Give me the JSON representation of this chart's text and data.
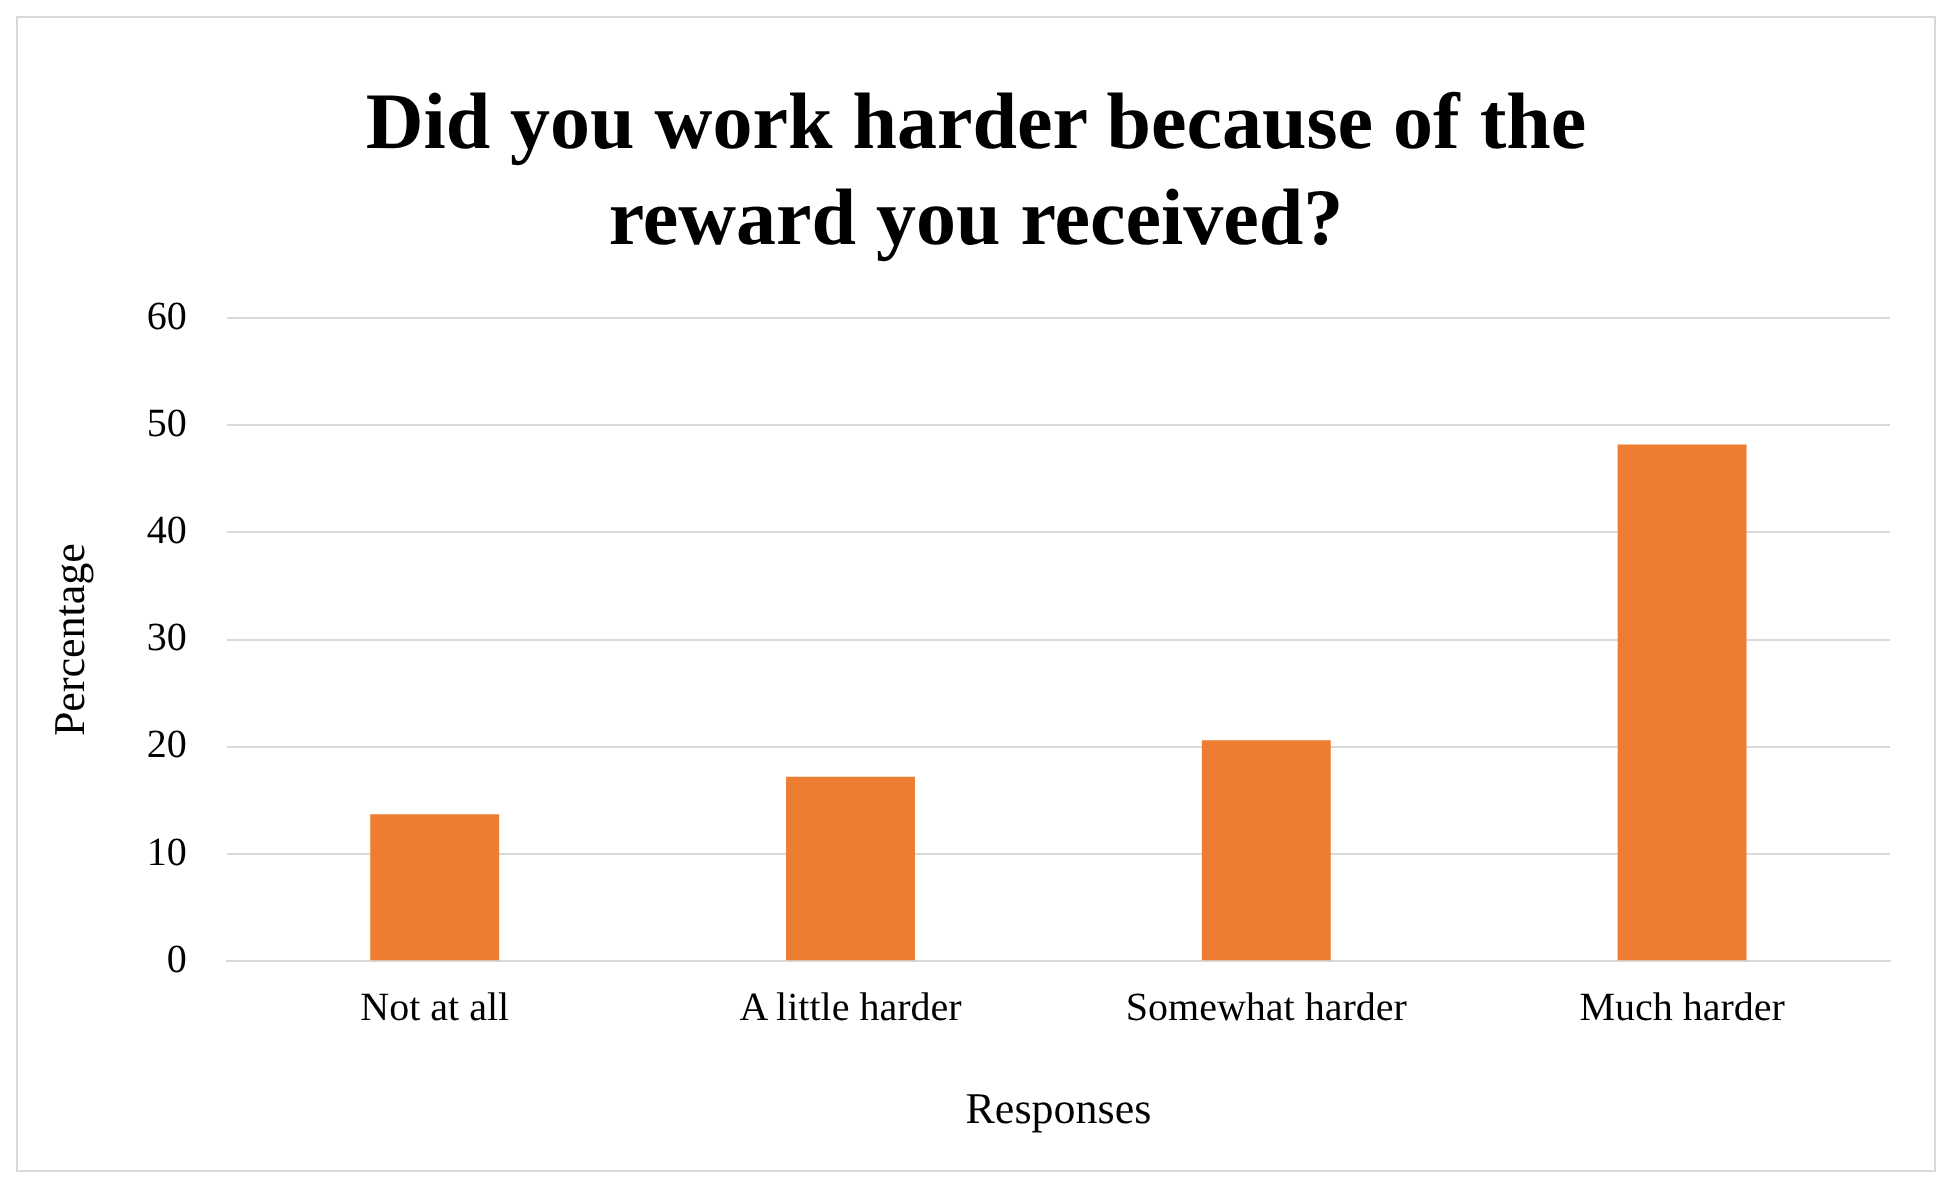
{
  "chart_data": {
    "type": "bar",
    "title": "Did you work harder because of the reward you received?",
    "xlabel": "Responses",
    "ylabel": "Percentage",
    "categories": [
      "Not at all",
      "A little harder",
      "Somewhat harder",
      "Much harder"
    ],
    "values": [
      13.7,
      17.2,
      20.6,
      48.2
    ],
    "color": "#ed7d31",
    "ylim": [
      0,
      60
    ],
    "yticks": [
      0,
      10,
      20,
      30,
      40,
      50,
      60
    ],
    "grid": "y",
    "legend": false
  }
}
